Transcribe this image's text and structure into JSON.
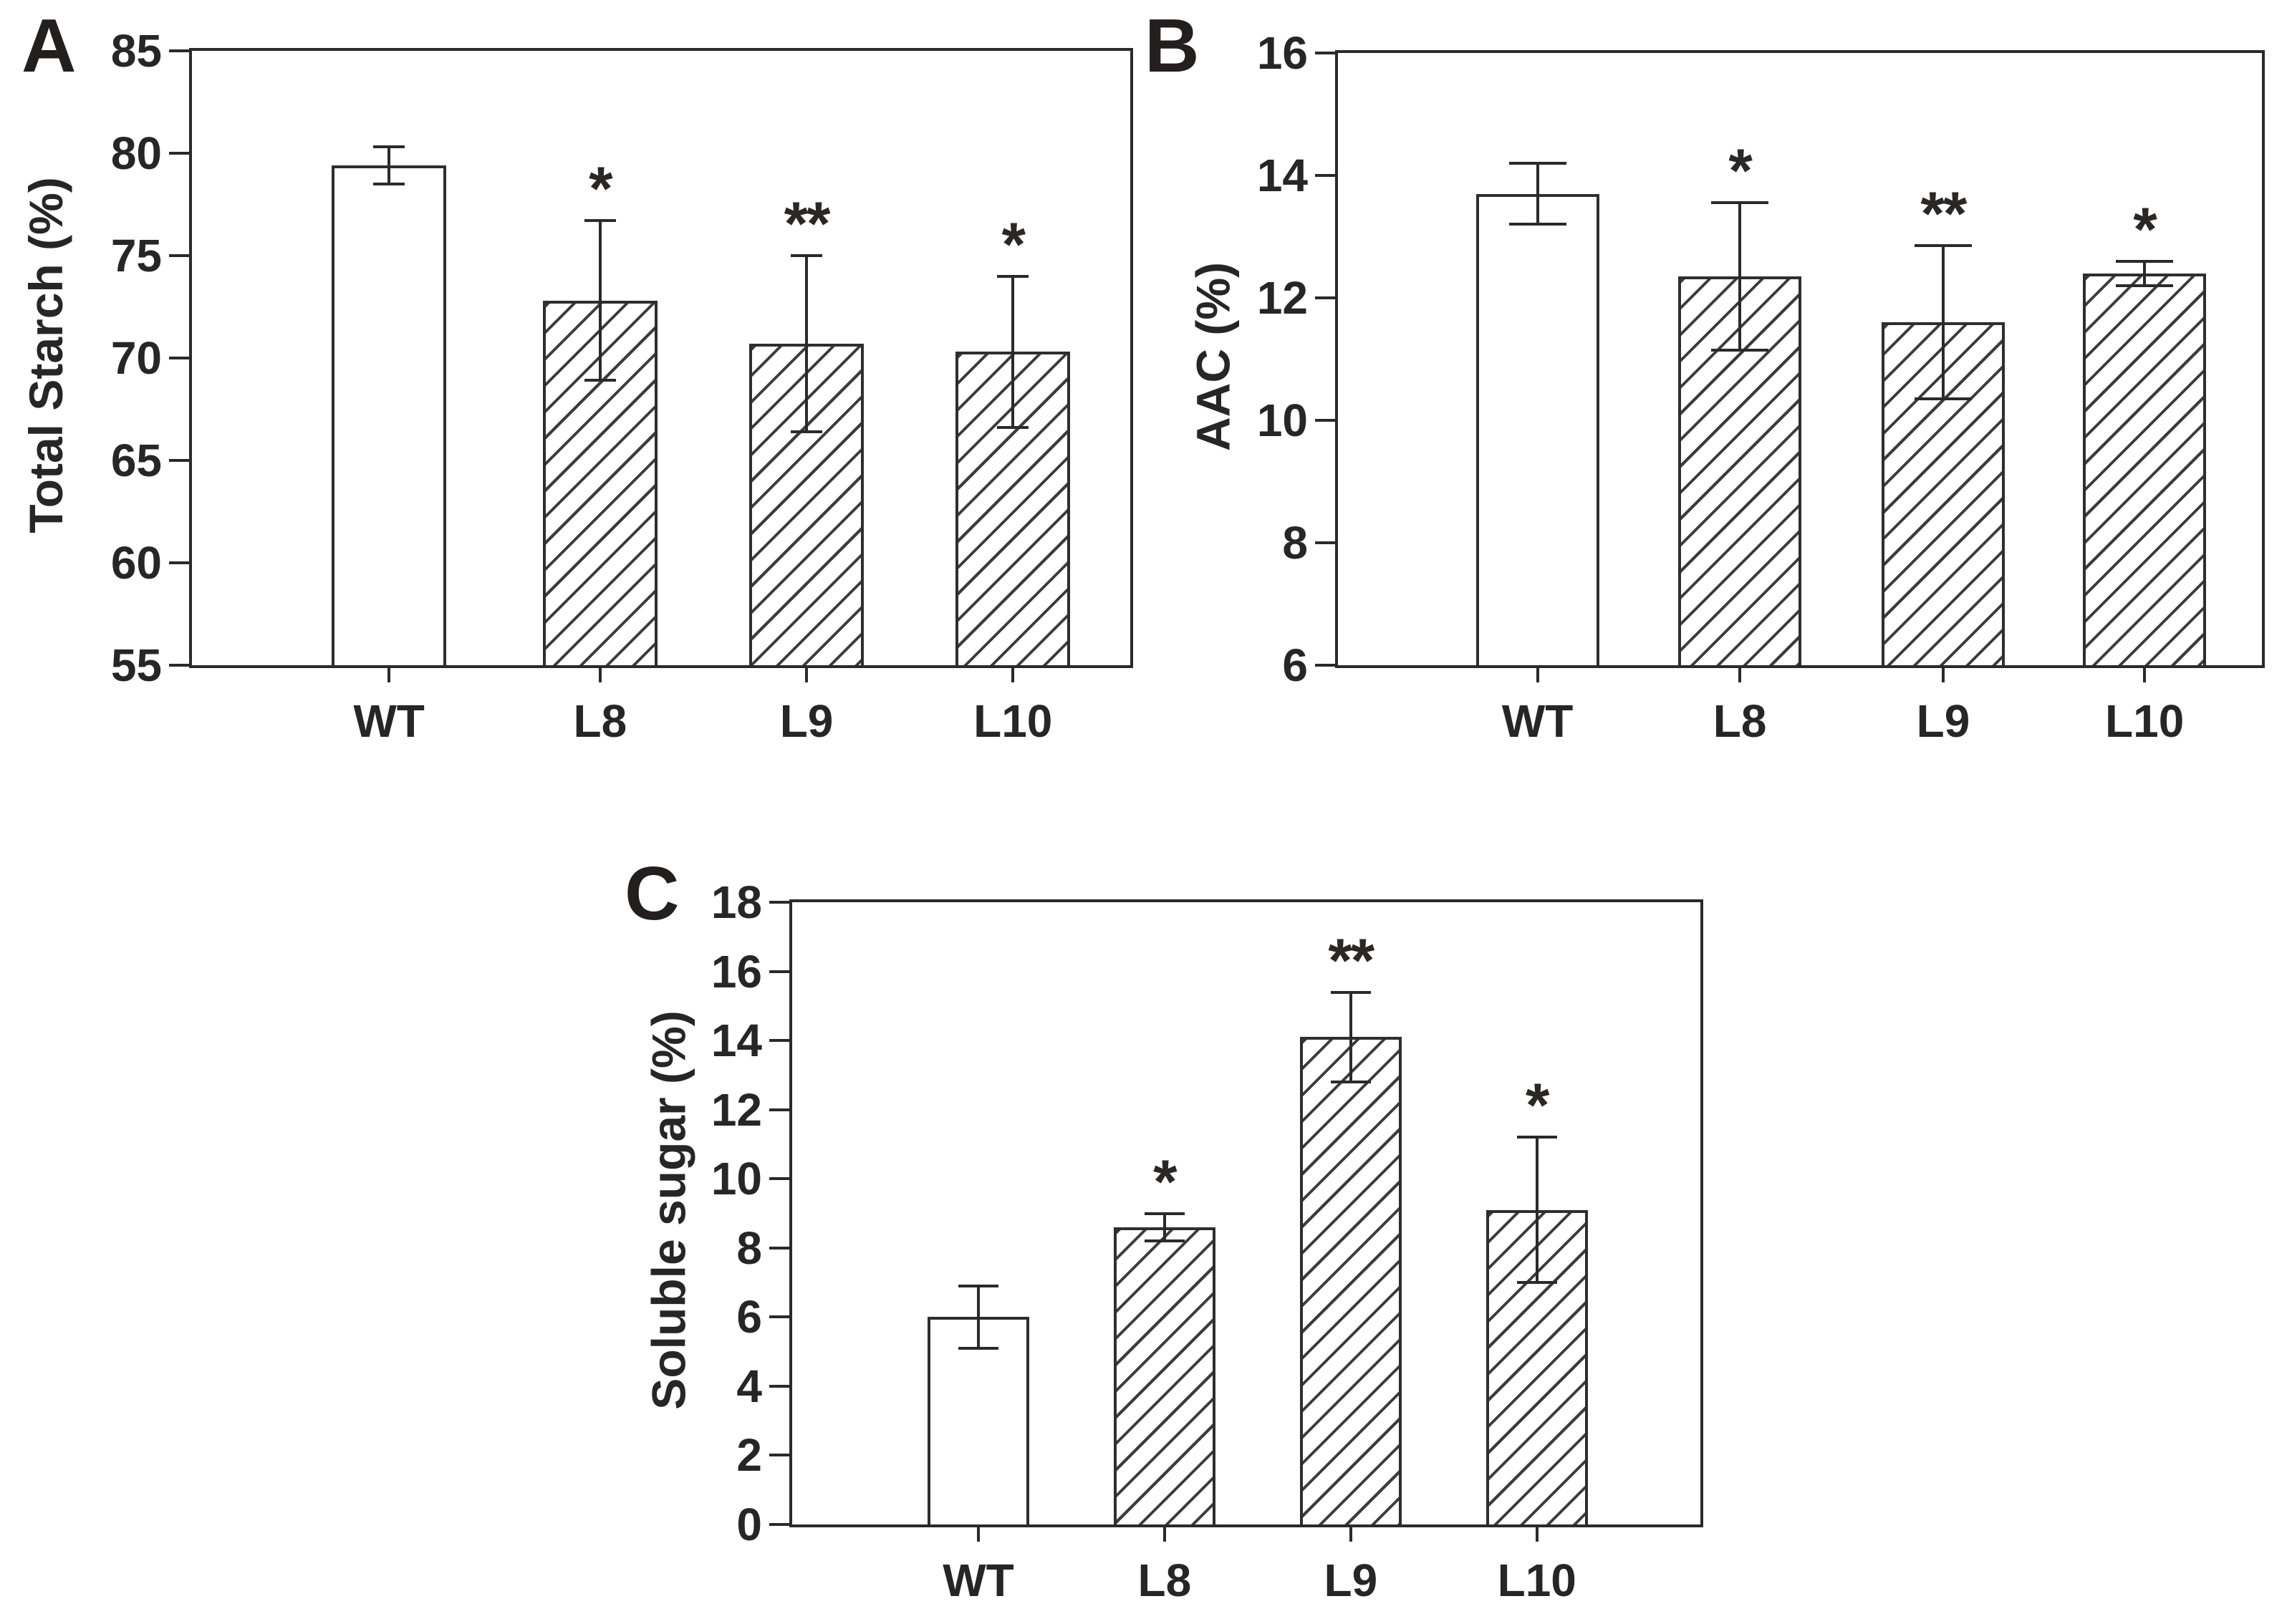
{
  "figure": {
    "background": "#ffffff",
    "ink_color": "#2a2a2a",
    "bar_fill_plain": "#ffffff",
    "bar_hatch_style": "diagonal-forward-slash",
    "panels_order": [
      "A",
      "B",
      "C"
    ]
  },
  "chart_data": [
    {
      "type": "bar",
      "panel_label": "A",
      "title": "",
      "xlabel": "",
      "ylabel": "Total Starch (%)",
      "ylim": [
        55,
        85
      ],
      "yticks": [
        55,
        60,
        65,
        70,
        75,
        80,
        85
      ],
      "grid": false,
      "legend": null,
      "categories": [
        "WT",
        "L8",
        "L9",
        "L10"
      ],
      "values": [
        79.4,
        72.8,
        70.7,
        70.3
      ],
      "errors": [
        0.9,
        3.9,
        4.3,
        3.7
      ],
      "significance": [
        "",
        "*",
        "**",
        "*"
      ],
      "bar_styles": [
        "plain",
        "hatched",
        "hatched",
        "hatched"
      ]
    },
    {
      "type": "bar",
      "panel_label": "B",
      "title": "",
      "xlabel": "",
      "ylabel": "AAC (%)",
      "ylim": [
        6,
        16
      ],
      "yticks": [
        6,
        8,
        10,
        12,
        14,
        16
      ],
      "grid": false,
      "legend": null,
      "categories": [
        "WT",
        "L8",
        "L9",
        "L10"
      ],
      "values": [
        13.7,
        12.35,
        11.6,
        12.4
      ],
      "errors": [
        0.5,
        1.2,
        1.25,
        0.2
      ],
      "significance": [
        "",
        "*",
        "**",
        "*"
      ],
      "bar_styles": [
        "plain",
        "hatched",
        "hatched",
        "hatched"
      ]
    },
    {
      "type": "bar",
      "panel_label": "C",
      "title": "",
      "xlabel": "",
      "ylabel": "Soluble sugar (%)",
      "ylim": [
        0,
        18
      ],
      "yticks": [
        0,
        2,
        4,
        6,
        8,
        10,
        12,
        14,
        16,
        18
      ],
      "grid": false,
      "legend": null,
      "categories": [
        "WT",
        "L8",
        "L9",
        "L10"
      ],
      "values": [
        6.0,
        8.6,
        14.1,
        9.1
      ],
      "errors": [
        0.9,
        0.4,
        1.3,
        2.1
      ],
      "significance": [
        "",
        "*",
        "**",
        "*"
      ],
      "bar_styles": [
        "plain",
        "hatched",
        "hatched",
        "hatched"
      ]
    }
  ]
}
